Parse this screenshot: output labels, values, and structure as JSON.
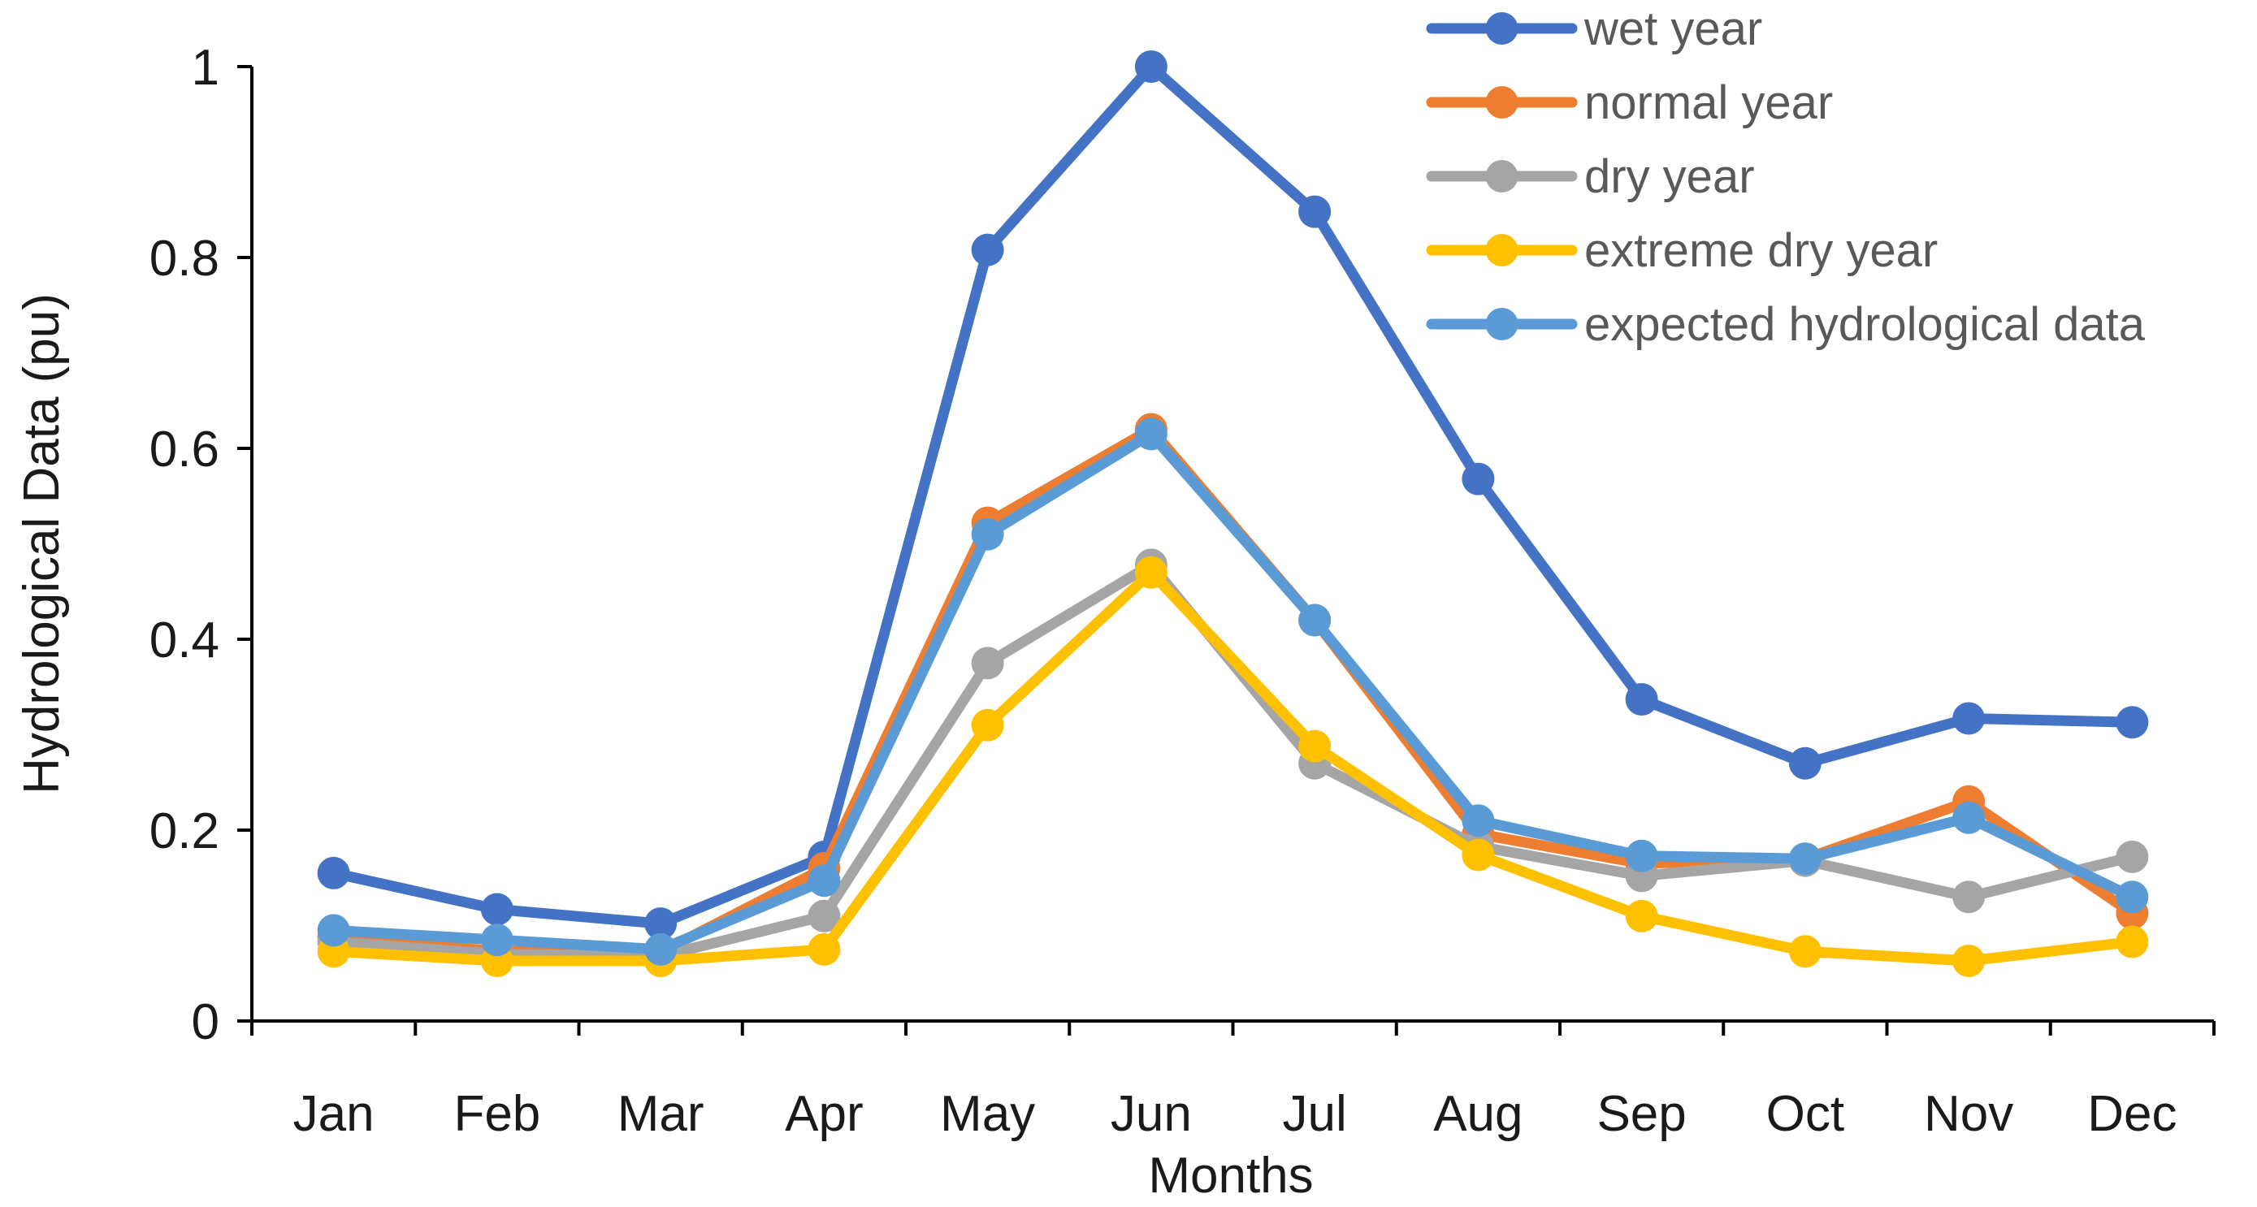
{
  "chart_data": {
    "type": "line",
    "title": "",
    "xlabel": "Months",
    "ylabel": "Hydrological Data (pu)",
    "categories": [
      "Jan",
      "Feb",
      "Mar",
      "Apr",
      "May",
      "Jun",
      "Jul",
      "Aug",
      "Sep",
      "Oct",
      "Nov",
      "Dec"
    ],
    "ylim": [
      0,
      1
    ],
    "yticks": [
      0,
      0.2,
      0.4,
      0.6,
      0.8,
      1
    ],
    "ytick_labels": [
      "0",
      "0.2",
      "0.4",
      "0.6",
      "0.8",
      "1"
    ],
    "grid": false,
    "legend_position": "top-right",
    "series": [
      {
        "name": "wet year",
        "color": "#4472C4",
        "values": [
          0.155,
          0.117,
          0.102,
          0.172,
          0.808,
          1.0,
          0.848,
          0.568,
          0.337,
          0.27,
          0.317,
          0.313
        ]
      },
      {
        "name": "normal year",
        "color": "#ED7D31",
        "values": [
          0.088,
          0.073,
          0.072,
          0.16,
          0.522,
          0.62,
          0.42,
          0.196,
          0.165,
          0.17,
          0.23,
          0.113
        ]
      },
      {
        "name": "dry year",
        "color": "#A5A5A5",
        "values": [
          0.083,
          0.07,
          0.068,
          0.11,
          0.375,
          0.478,
          0.27,
          0.183,
          0.152,
          0.168,
          0.13,
          0.172
        ]
      },
      {
        "name": "extreme dry year",
        "color": "#FFC000",
        "values": [
          0.073,
          0.063,
          0.063,
          0.075,
          0.31,
          0.47,
          0.288,
          0.174,
          0.11,
          0.073,
          0.063,
          0.083
        ]
      },
      {
        "name": "expected hydrological data",
        "color": "#5B9BD5",
        "values": [
          0.095,
          0.085,
          0.075,
          0.147,
          0.51,
          0.615,
          0.42,
          0.21,
          0.173,
          0.17,
          0.213,
          0.13
        ]
      }
    ]
  }
}
